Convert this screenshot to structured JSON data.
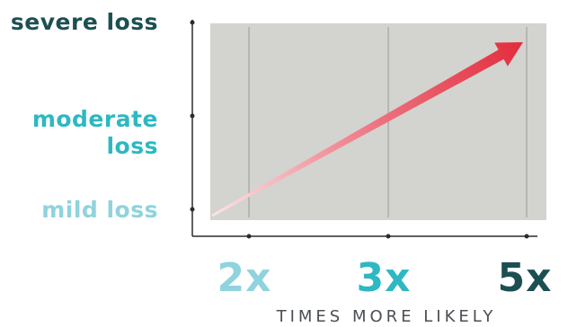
{
  "chart_data": {
    "type": "line",
    "xlabel": "TIMES MORE LIKELY",
    "ylabel": "",
    "x_categories": [
      "2x",
      "3x",
      "5x"
    ],
    "y_categories": [
      "mild loss",
      "moderate loss",
      "severe loss"
    ],
    "series": [
      {
        "points": [
          {
            "x": "2x",
            "y": "mild loss"
          },
          {
            "x": "5x",
            "y": "severe loss"
          }
        ]
      }
    ],
    "grid": true,
    "colors": {
      "plot_background": "#d3d3cf",
      "arrow": "#e22c3c",
      "mild": "#8fd3dd",
      "moderate": "#2db8c3",
      "severe": "#1d4f52",
      "x_2x": "#8fd3dd",
      "x_3x": "#2db8c3",
      "x_5x": "#1d4f52"
    }
  }
}
